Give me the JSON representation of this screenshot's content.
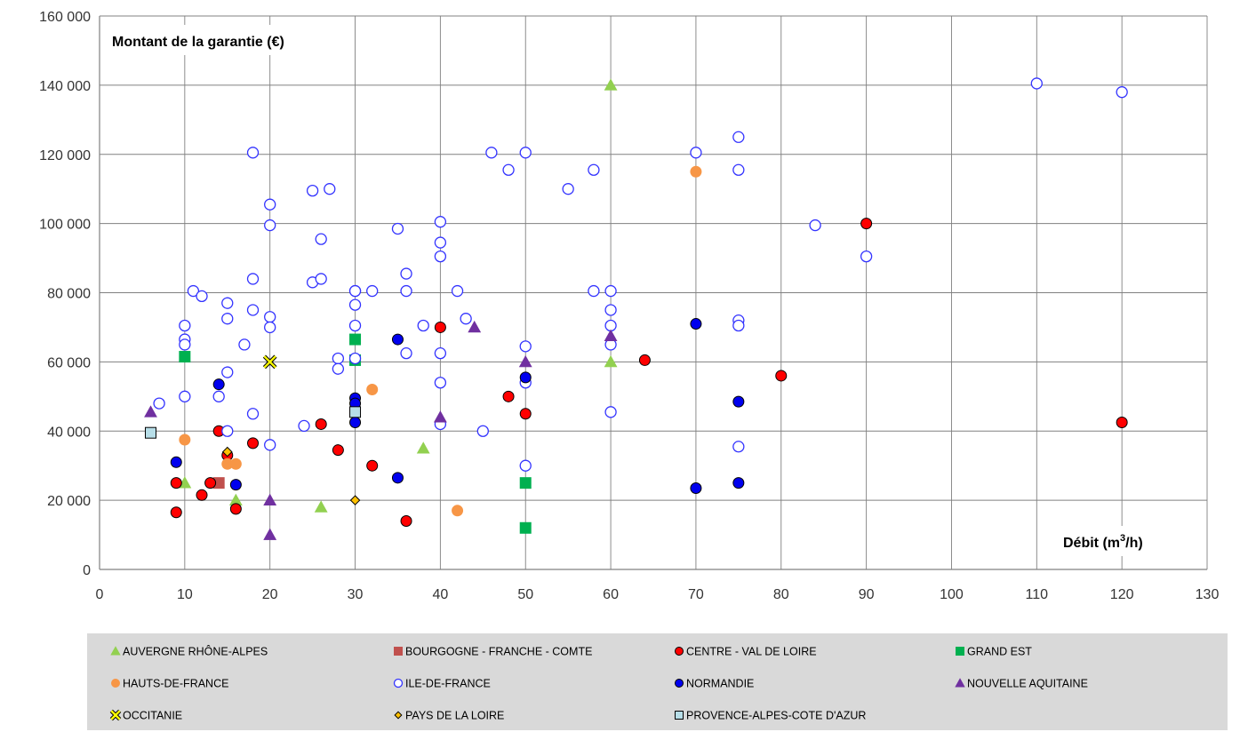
{
  "chart_data": {
    "type": "scatter",
    "xlabel": "Débit (m³/h)",
    "xlabel_base": "Débit (m",
    "xlabel_sup": "3",
    "xlabel_end": "/h)",
    "ylabel": "Montant de la garantie (€)",
    "xlim": [
      0,
      130
    ],
    "ylim": [
      0,
      160000
    ],
    "xticks": [
      0,
      10,
      20,
      30,
      40,
      50,
      60,
      70,
      80,
      90,
      100,
      110,
      120,
      130
    ],
    "yticks": [
      0,
      20000,
      40000,
      60000,
      80000,
      100000,
      120000,
      140000,
      160000
    ],
    "xtick_labels": [
      "0",
      "10",
      "20",
      "30",
      "40",
      "50",
      "60",
      "70",
      "80",
      "90",
      "100",
      "110",
      "120",
      "130"
    ],
    "ytick_labels": [
      "0",
      "20 000",
      "40 000",
      "60 000",
      "80 000",
      "100 000",
      "120 000",
      "140 000",
      "160 000"
    ],
    "grid": true,
    "legend_position": "bottom",
    "series": [
      {
        "name": "AUVERGNE RHÔNE-ALPES",
        "marker": "triangle",
        "color": "#92d050",
        "stroke": "#92d050",
        "filled": true,
        "x": [
          10,
          16,
          26,
          38,
          60,
          60
        ],
        "y": [
          25000,
          20000,
          18000,
          35000,
          60000,
          140000
        ]
      },
      {
        "name": "BOURGOGNE - FRANCHE - COMTE",
        "marker": "square",
        "color": "#c0504d",
        "stroke": "#c0504d",
        "filled": true,
        "x": [
          14
        ],
        "y": [
          25000
        ]
      },
      {
        "name": "CENTRE - VAL DE LOIRE",
        "marker": "circle",
        "color": "#ff0000",
        "stroke": "#000000",
        "filled": true,
        "x": [
          9,
          9,
          12,
          13,
          14,
          15,
          16,
          18,
          26,
          28,
          32,
          36,
          40,
          48,
          50,
          64,
          80,
          90,
          120
        ],
        "y": [
          16500,
          25000,
          21500,
          25000,
          40000,
          33000,
          17500,
          36500,
          42000,
          34500,
          30000,
          14000,
          70000,
          50000,
          45000,
          60500,
          56000,
          100000,
          42500
        ]
      },
      {
        "name": "GRAND EST",
        "marker": "square",
        "color": "#00b050",
        "stroke": "#00b050",
        "filled": true,
        "x": [
          10,
          30,
          30,
          50,
          50
        ],
        "y": [
          61500,
          66500,
          60500,
          25000,
          12000
        ]
      },
      {
        "name": "HAUTS-DE-FRANCE",
        "marker": "circle",
        "color": "#f79646",
        "stroke": "#f79646",
        "filled": true,
        "x": [
          10,
          15,
          16,
          32,
          42,
          70
        ],
        "y": [
          37500,
          30500,
          30500,
          52000,
          17000,
          115000
        ]
      },
      {
        "name": "ILE-DE-FRANCE",
        "marker": "circle",
        "color": "#ffffff",
        "stroke": "#3333ff",
        "filled": false,
        "x": [
          7,
          10,
          10,
          10,
          10,
          11,
          12,
          14,
          15,
          15,
          15,
          15,
          17,
          18,
          18,
          18,
          18,
          20,
          20,
          20,
          20,
          20,
          24,
          25,
          25,
          26,
          26,
          27,
          28,
          28,
          30,
          30,
          30,
          30,
          30,
          32,
          35,
          36,
          36,
          36,
          38,
          40,
          40,
          40,
          40,
          40,
          40,
          42,
          43,
          45,
          46,
          48,
          50,
          50,
          50,
          50,
          55,
          58,
          58,
          60,
          60,
          60,
          60,
          60,
          70,
          75,
          75,
          75,
          75,
          75,
          84,
          90,
          110,
          120
        ],
        "y": [
          48000,
          70500,
          66500,
          65000,
          50000,
          80500,
          79000,
          50000,
          77000,
          72500,
          57000,
          40000,
          65000,
          84000,
          75000,
          45000,
          120500,
          105500,
          99500,
          73000,
          70000,
          36000,
          41500,
          109500,
          83000,
          95500,
          84000,
          110000,
          61000,
          58000,
          80500,
          76500,
          70500,
          61000,
          80500,
          80500,
          98500,
          85500,
          80500,
          62500,
          70500,
          100500,
          94500,
          90500,
          62500,
          54000,
          42000,
          80500,
          72500,
          40000,
          120500,
          115500,
          120500,
          64500,
          54000,
          30000,
          110000,
          115500,
          80500,
          80500,
          75000,
          70500,
          65000,
          45500,
          120500,
          125000,
          115500,
          72000,
          70500,
          35500,
          99500,
          90500,
          140500,
          138000
        ]
      },
      {
        "name": "NORMANDIE",
        "marker": "circle",
        "color": "#0000ee",
        "stroke": "#000000",
        "filled": true,
        "x": [
          9,
          14,
          16,
          30,
          30,
          30,
          35,
          35,
          50,
          70,
          70,
          75,
          75
        ],
        "y": [
          31000,
          53500,
          24500,
          49500,
          48000,
          42500,
          66500,
          26500,
          55500,
          71000,
          23500,
          48500,
          25000
        ]
      },
      {
        "name": "NOUVELLE AQUITAINE",
        "marker": "triangle",
        "color": "#7030a0",
        "stroke": "#7030a0",
        "filled": true,
        "x": [
          6,
          20,
          20,
          40,
          44,
          50,
          60
        ],
        "y": [
          45500,
          20000,
          10000,
          44000,
          70000,
          60000,
          67500
        ]
      },
      {
        "name": "OCCITANIE",
        "marker": "x",
        "color": "#ffff00",
        "stroke": "#000000",
        "filled": true,
        "x": [
          20
        ],
        "y": [
          60000
        ]
      },
      {
        "name": "PAYS DE LA LOIRE",
        "marker": "diamond",
        "color": "#ffc000",
        "stroke": "#000000",
        "filled": true,
        "x": [
          15,
          30
        ],
        "y": [
          34000,
          20000
        ]
      },
      {
        "name": "PROVENCE-ALPES-COTE D'AZUR",
        "marker": "square",
        "color": "#b7dee8",
        "stroke": "#000000",
        "filled": true,
        "x": [
          6,
          30
        ],
        "y": [
          39500,
          45500
        ]
      }
    ]
  }
}
